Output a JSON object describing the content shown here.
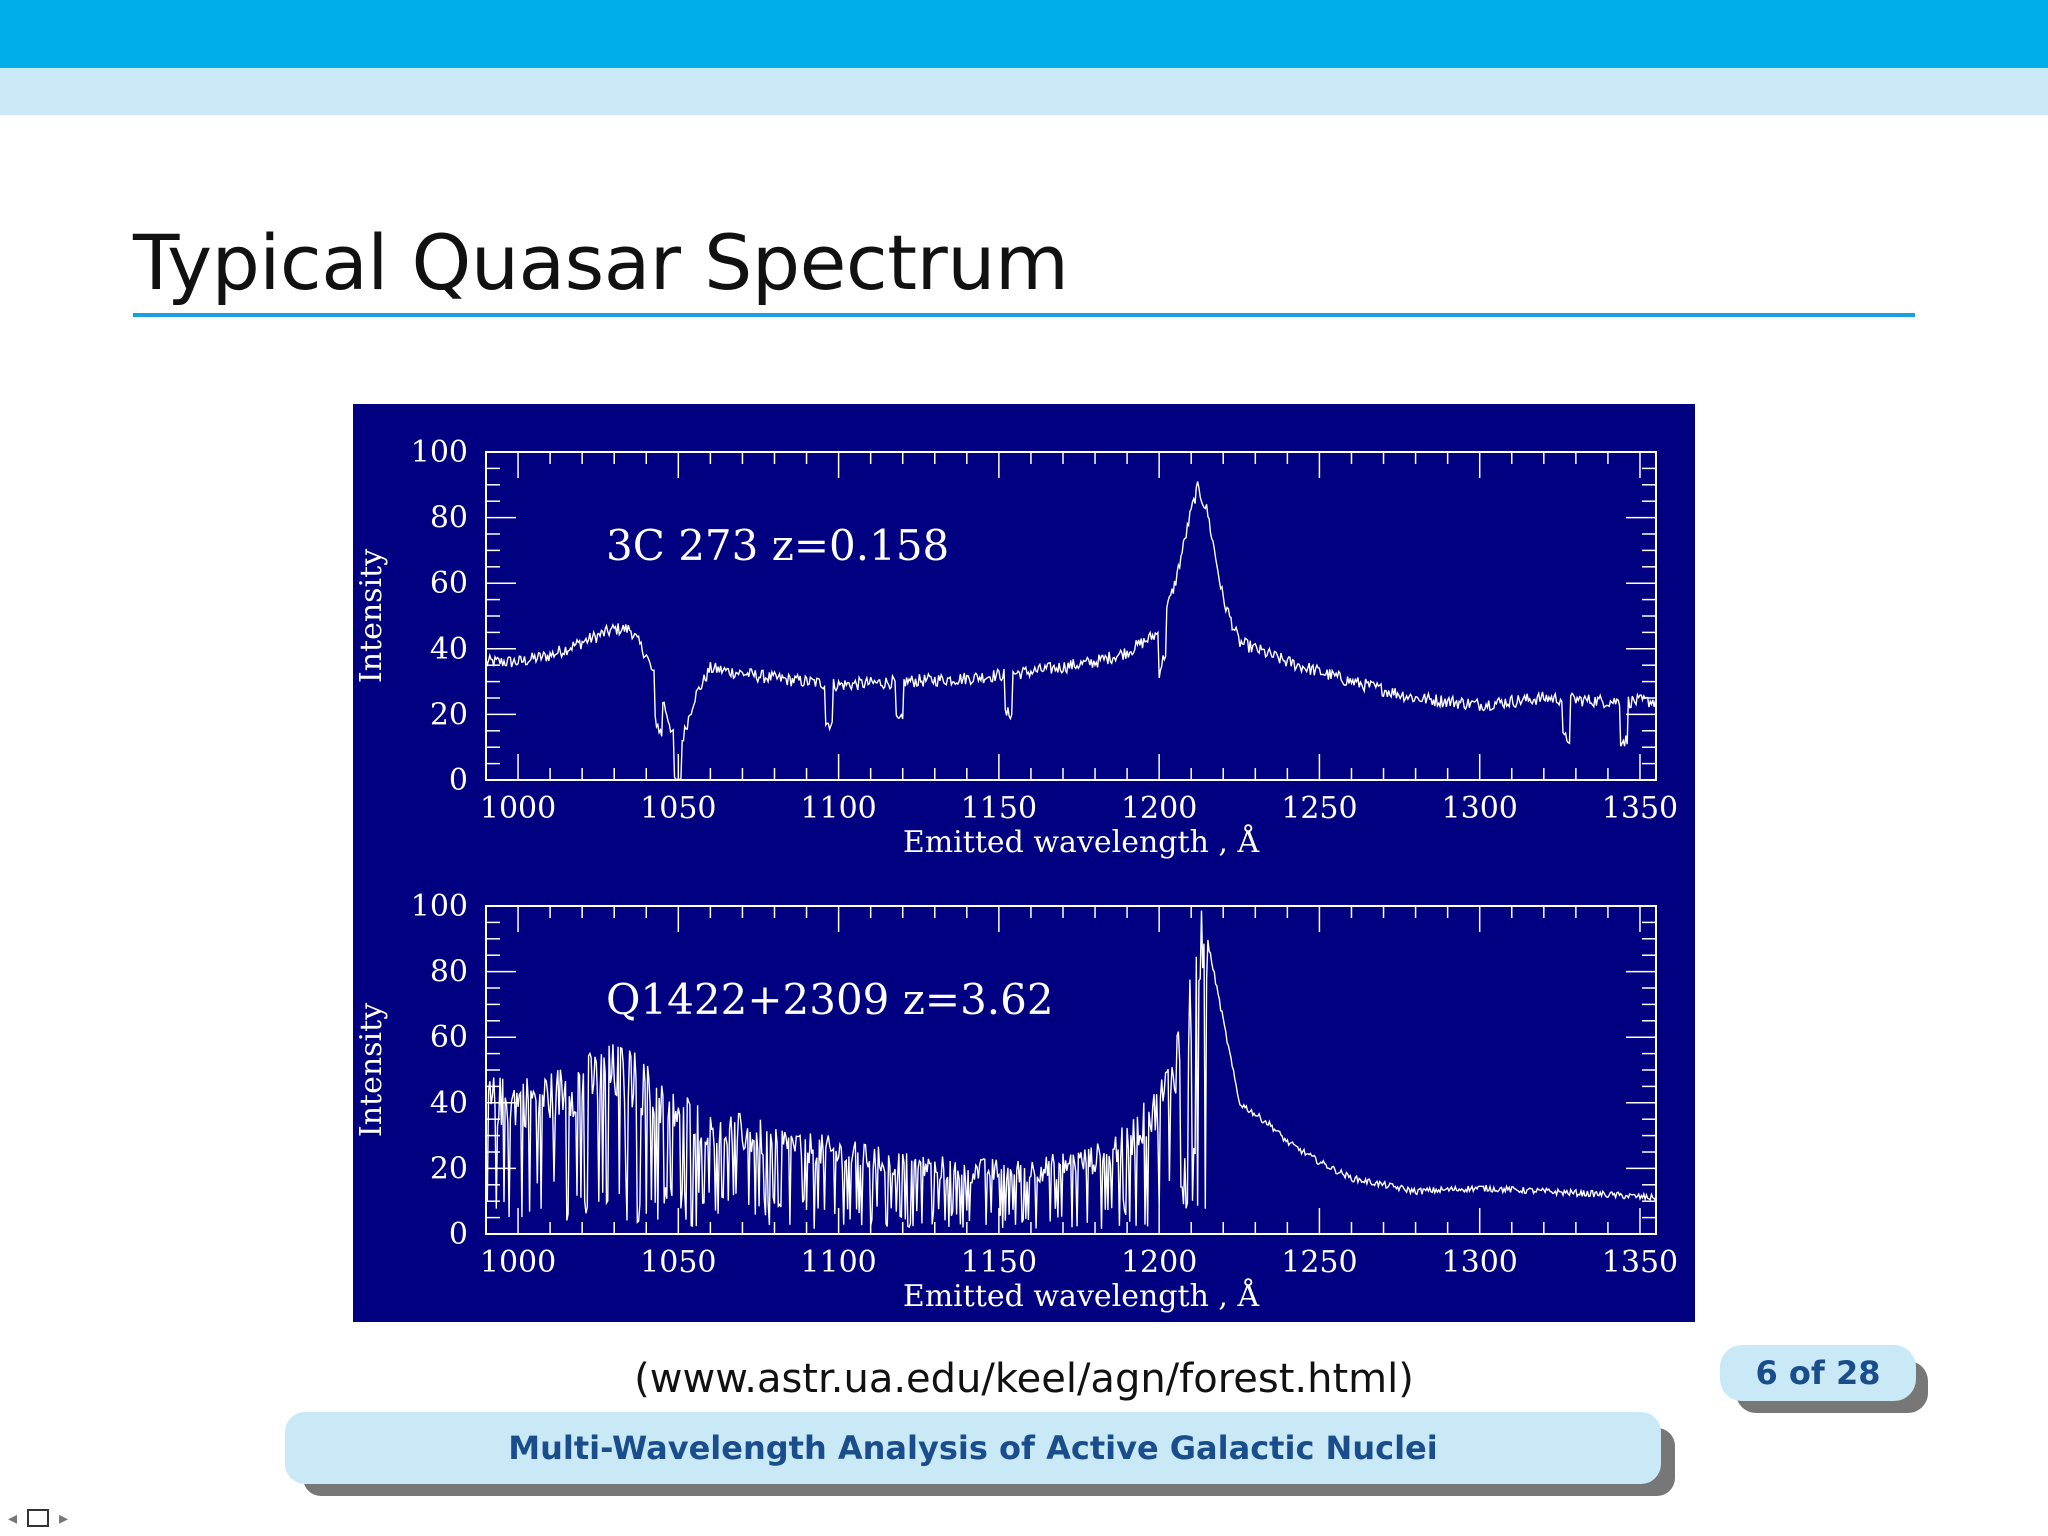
{
  "slide": {
    "title": "Typical Quasar Spectrum",
    "source": "(www.astr.ua.edu/keel/agn/forest.html)",
    "page_indicator": "6 of 28",
    "footer": "Multi-Wavelength Analysis of Active Galactic Nuclei"
  },
  "colors": {
    "header_bar": "#00aeea",
    "header_sub": "#c9e9f7",
    "figure_bg": "#000080",
    "footer_text": "#1a4d8c"
  },
  "chart_data": [
    {
      "type": "line",
      "label": "3C 273  z=0.158",
      "xlabel": "Emitted wavelength , Å",
      "ylabel": "Intensity",
      "xlim": [
        990,
        1355
      ],
      "ylim": [
        0,
        100
      ],
      "x_ticks": [
        1000,
        1050,
        1100,
        1150,
        1200,
        1250,
        1300,
        1350
      ],
      "y_ticks": [
        0,
        20,
        40,
        60,
        80,
        100
      ],
      "x": [
        990,
        1000,
        1010,
        1020,
        1030,
        1035,
        1040,
        1045,
        1050,
        1055,
        1060,
        1080,
        1100,
        1120,
        1140,
        1160,
        1180,
        1190,
        1200,
        1205,
        1210,
        1212,
        1215,
        1220,
        1225,
        1240,
        1260,
        1280,
        1300,
        1320,
        1340,
        1355
      ],
      "y": [
        36,
        36,
        38,
        42,
        46,
        46,
        38,
        25,
        8,
        25,
        34,
        31,
        29,
        30,
        31,
        33,
        36,
        39,
        45,
        60,
        82,
        89,
        82,
        55,
        42,
        36,
        30,
        25,
        23,
        25,
        24,
        24
      ],
      "absorption_lines": [
        1044,
        1050,
        1097,
        1119,
        1153,
        1201,
        1327,
        1345
      ]
    },
    {
      "type": "line",
      "label": "Q1422+2309  z=3.62",
      "xlabel": "Emitted wavelength , Å",
      "ylabel": "Intensity",
      "xlim": [
        990,
        1355
      ],
      "ylim": [
        0,
        100
      ],
      "x_ticks": [
        1000,
        1050,
        1100,
        1150,
        1200,
        1250,
        1300,
        1350
      ],
      "y_ticks": [
        0,
        20,
        40,
        60,
        80,
        100
      ],
      "x": [
        990,
        1000,
        1010,
        1020,
        1030,
        1035,
        1040,
        1050,
        1060,
        1080,
        1100,
        1120,
        1140,
        1160,
        1180,
        1190,
        1200,
        1205,
        1210,
        1213,
        1215,
        1220,
        1225,
        1235,
        1240,
        1250,
        1260,
        1280,
        1300,
        1320,
        1340,
        1355
      ],
      "y": [
        46,
        46,
        48,
        52,
        56,
        55,
        50,
        42,
        38,
        32,
        28,
        24,
        22,
        22,
        26,
        32,
        44,
        60,
        80,
        95,
        90,
        65,
        40,
        33,
        28,
        22,
        17,
        13,
        14,
        13,
        12,
        11
      ],
      "forest_end": 1215
    }
  ]
}
